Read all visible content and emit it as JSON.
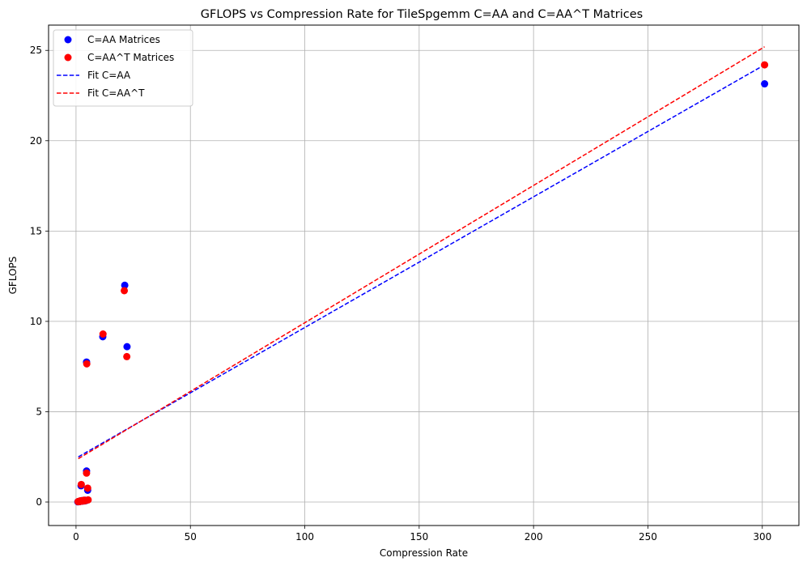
{
  "chart_data": {
    "type": "scatter",
    "title": "GFLOPS vs Compression Rate for TileSpgemm C=AA and C=AA^T Matrices",
    "xlabel": "Compression Rate",
    "ylabel": "GFLOPS",
    "xlim": [
      -12,
      316
    ],
    "ylim": [
      -1.3,
      26.4
    ],
    "xticks": [
      0,
      50,
      100,
      150,
      200,
      250,
      300
    ],
    "yticks": [
      0,
      5,
      10,
      15,
      20,
      25
    ],
    "grid": true,
    "legend_position": "top-left",
    "series": [
      {
        "name": "C=AA Matrices",
        "kind": "scatter",
        "color": "#0000ff",
        "points": [
          [
            0.8,
            0.01
          ],
          [
            1.0,
            0.02
          ],
          [
            1.2,
            0.03
          ],
          [
            1.5,
            0.02
          ],
          [
            1.8,
            0.05
          ],
          [
            2.0,
            0.04
          ],
          [
            2.2,
            0.06
          ],
          [
            2.5,
            0.08
          ],
          [
            2.8,
            0.05
          ],
          [
            3.0,
            0.07
          ],
          [
            3.3,
            0.09
          ],
          [
            3.6,
            0.06
          ],
          [
            4.0,
            0.1
          ],
          [
            4.4,
            0.08
          ],
          [
            2.2,
            0.9
          ],
          [
            4.6,
            1.72
          ],
          [
            5.1,
            0.65
          ],
          [
            4.6,
            7.75
          ],
          [
            11.7,
            9.15
          ],
          [
            21.3,
            12.0
          ],
          [
            22.3,
            8.6
          ],
          [
            301,
            23.15
          ]
        ]
      },
      {
        "name": "C=AA^T Matrices",
        "kind": "scatter",
        "color": "#ff0000",
        "points": [
          [
            0.9,
            0.02
          ],
          [
            1.1,
            0.03
          ],
          [
            1.4,
            0.02
          ],
          [
            1.7,
            0.06
          ],
          [
            2.0,
            0.04
          ],
          [
            2.3,
            0.07
          ],
          [
            2.6,
            0.05
          ],
          [
            2.9,
            0.08
          ],
          [
            3.2,
            0.06
          ],
          [
            3.5,
            0.1
          ],
          [
            3.9,
            0.07
          ],
          [
            4.3,
            0.09
          ],
          [
            5.3,
            0.12
          ],
          [
            2.3,
            0.97
          ],
          [
            4.6,
            1.6
          ],
          [
            5.1,
            0.77
          ],
          [
            4.7,
            7.65
          ],
          [
            11.8,
            9.3
          ],
          [
            21.1,
            11.7
          ],
          [
            22.2,
            8.05
          ],
          [
            301,
            24.2
          ]
        ]
      },
      {
        "name": "Fit C=AA",
        "kind": "line",
        "style": "dashed",
        "color": "#0000ff",
        "points": [
          [
            1.0,
            2.5
          ],
          [
            301,
            24.2
          ]
        ]
      },
      {
        "name": "Fit C=AA^T",
        "kind": "line",
        "style": "dashed",
        "color": "#ff0000",
        "points": [
          [
            1.0,
            2.4
          ],
          [
            301,
            25.2
          ]
        ]
      }
    ]
  }
}
